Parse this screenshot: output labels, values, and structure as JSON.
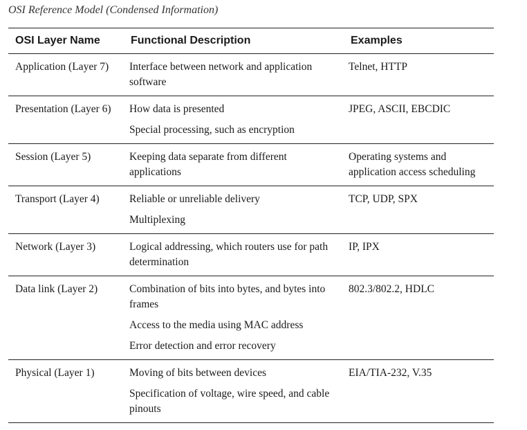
{
  "caption": "OSI Reference Model (Condensed Information)",
  "headers": [
    "OSI Layer Name",
    "Functional Description",
    "Examples"
  ],
  "rows": [
    {
      "layer": "Application (Layer 7)",
      "descriptions": [
        "Interface between network and application software"
      ],
      "examples": "Telnet, HTTP"
    },
    {
      "layer": "Presentation (Layer 6)",
      "descriptions": [
        "How data is presented",
        "Special processing, such as encryption"
      ],
      "examples": "JPEG, ASCII, EBCDIC"
    },
    {
      "layer": "Session (Layer 5)",
      "descriptions": [
        "Keeping data separate from different applications"
      ],
      "examples": "Operating systems and application access scheduling"
    },
    {
      "layer": "Transport (Layer 4)",
      "descriptions": [
        "Reliable or unreliable delivery",
        "Multiplexing"
      ],
      "examples": "TCP, UDP, SPX"
    },
    {
      "layer": "Network (Layer 3)",
      "descriptions": [
        "Logical addressing, which routers use for path determination"
      ],
      "examples": "IP, IPX"
    },
    {
      "layer": "Data link (Layer 2)",
      "descriptions": [
        "Combination of bits into bytes, and bytes into frames",
        "Access to the media using MAC address",
        "Error detection and error recovery"
      ],
      "examples": "802.3/802.2, HDLC"
    },
    {
      "layer": "Physical (Layer 1)",
      "descriptions": [
        "Moving of bits between devices",
        "Specification of voltage, wire speed, and cable pinouts"
      ],
      "examples": "EIA/TIA-232, V.35"
    }
  ]
}
